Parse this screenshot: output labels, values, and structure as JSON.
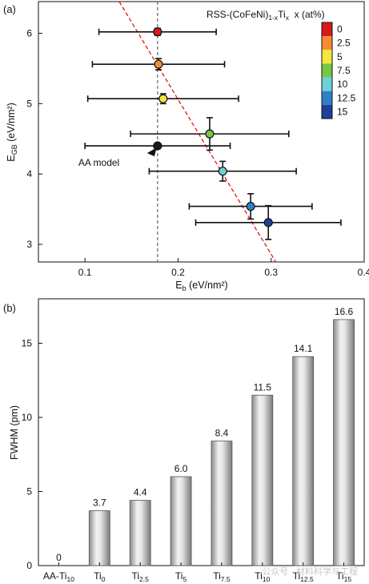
{
  "chart_data": [
    {
      "type": "scatter",
      "panel_label": "(a)",
      "xlabel": "E_b (eV/nm²)",
      "xlabel_main": "E",
      "xlabel_sub": "b",
      "xlabel_unit": " (eV/nm²)",
      "ylabel_main": "E",
      "ylabel_sub": "GB",
      "ylabel_unit": " (eV/nm²)",
      "xlim": [
        0.05,
        0.4
      ],
      "ylim": [
        2.75,
        6.45
      ],
      "x_ticks": [
        0.1,
        0.2,
        0.3,
        0.4
      ],
      "x_tick_labels": [
        "0.1",
        "0.2",
        "0.3",
        "0.4"
      ],
      "y_ticks": [
        3,
        4,
        5,
        6
      ],
      "y_tick_labels": [
        "3",
        "4",
        "5",
        "6"
      ],
      "legend_title": "RSS-(CoFeNi)1-xTix  x (at%)",
      "legend_title_parts": [
        "RSS-(CoFeNi)",
        "1-x",
        "Ti",
        "x",
        "  x (at%)"
      ],
      "colorbar_labels": [
        "0",
        "2.5",
        "5",
        "7.5",
        "10",
        "12.5",
        "15"
      ],
      "colorbar_colors": [
        "#d7191c",
        "#f58c32",
        "#f5e63c",
        "#74c845",
        "#6cd0d8",
        "#2f7fc8",
        "#1f3f99"
      ],
      "points": [
        {
          "x": 0.178,
          "y": 6.02,
          "xerr": 0.063,
          "yerr": 0.05,
          "color": "#d7191c"
        },
        {
          "x": 0.179,
          "y": 5.56,
          "xerr": 0.071,
          "yerr": 0.08,
          "color": "#f58c32"
        },
        {
          "x": 0.184,
          "y": 5.07,
          "xerr": 0.081,
          "yerr": 0.07,
          "color": "#f5e63c"
        },
        {
          "x": 0.234,
          "y": 4.57,
          "xerr": 0.085,
          "yerr": 0.23,
          "color": "#74c845"
        },
        {
          "x": 0.178,
          "y": 4.4,
          "xerr": 0.078,
          "yerr": 0.0,
          "color": "#1a1a1a"
        },
        {
          "x": 0.248,
          "y": 4.04,
          "xerr": 0.079,
          "yerr": 0.14,
          "color": "#6cd0d8"
        },
        {
          "x": 0.278,
          "y": 3.54,
          "xerr": 0.066,
          "yerr": 0.18,
          "color": "#2f7fc8"
        },
        {
          "x": 0.297,
          "y": 3.31,
          "xerr": 0.078,
          "yerr": 0.24,
          "color": "#1f3f99"
        }
      ],
      "annotation": {
        "text": "AA model",
        "x": 0.178,
        "y": 4.4
      },
      "vline_x": 0.178,
      "fit_line": [
        [
          0.13,
          6.6
        ],
        [
          0.305,
          2.75
        ]
      ]
    },
    {
      "type": "bar",
      "panel_label": "(b)",
      "ylabel": "FWHM (pm)",
      "ylim": [
        0,
        18
      ],
      "y_ticks": [
        0,
        5,
        10,
        15
      ],
      "y_tick_labels": [
        "0",
        "5",
        "10",
        "15"
      ],
      "categories": [
        {
          "main": "AA-Ti",
          "sub": "10"
        },
        {
          "main": "Ti",
          "sub": "0"
        },
        {
          "main": "Ti",
          "sub": "2.5"
        },
        {
          "main": "Ti",
          "sub": "5"
        },
        {
          "main": "Ti",
          "sub": "7.5"
        },
        {
          "main": "Ti",
          "sub": "10"
        },
        {
          "main": "Ti",
          "sub": "12.5"
        },
        {
          "main": "Ti",
          "sub": "15"
        }
      ],
      "values": [
        0,
        3.7,
        4.4,
        6.0,
        8.4,
        11.5,
        14.1,
        16.6
      ],
      "value_labels": [
        "0",
        "3.7",
        "4.4",
        "6.0",
        "8.4",
        "11.5",
        "14.1",
        "16.6"
      ]
    }
  ],
  "watermark": "公众号 · 材料科学与工程"
}
